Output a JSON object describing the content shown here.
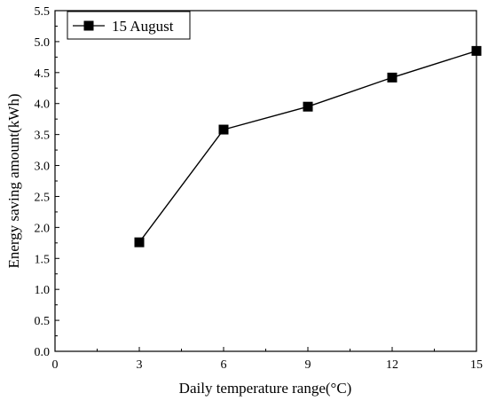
{
  "chart_data": {
    "type": "line",
    "title": "",
    "xlabel": "Daily temperature range(°C)",
    "ylabel": "Energy saving amount(kWh)",
    "xlim": [
      0,
      15
    ],
    "ylim": [
      0,
      5.5
    ],
    "x_ticks": [
      "0",
      "3",
      "6",
      "9",
      "12",
      "15"
    ],
    "y_ticks": [
      "0.0",
      "0.5",
      "1.0",
      "1.5",
      "2.0",
      "2.5",
      "3.0",
      "3.5",
      "4.0",
      "4.5",
      "5.0",
      "5.5"
    ],
    "grid": false,
    "legend_position": "top-left",
    "series": [
      {
        "name": "15 August",
        "color": "#000000",
        "marker": "square",
        "x": [
          3,
          6,
          9,
          12,
          15
        ],
        "values": [
          1.76,
          3.58,
          3.95,
          4.42,
          4.85
        ]
      }
    ]
  }
}
